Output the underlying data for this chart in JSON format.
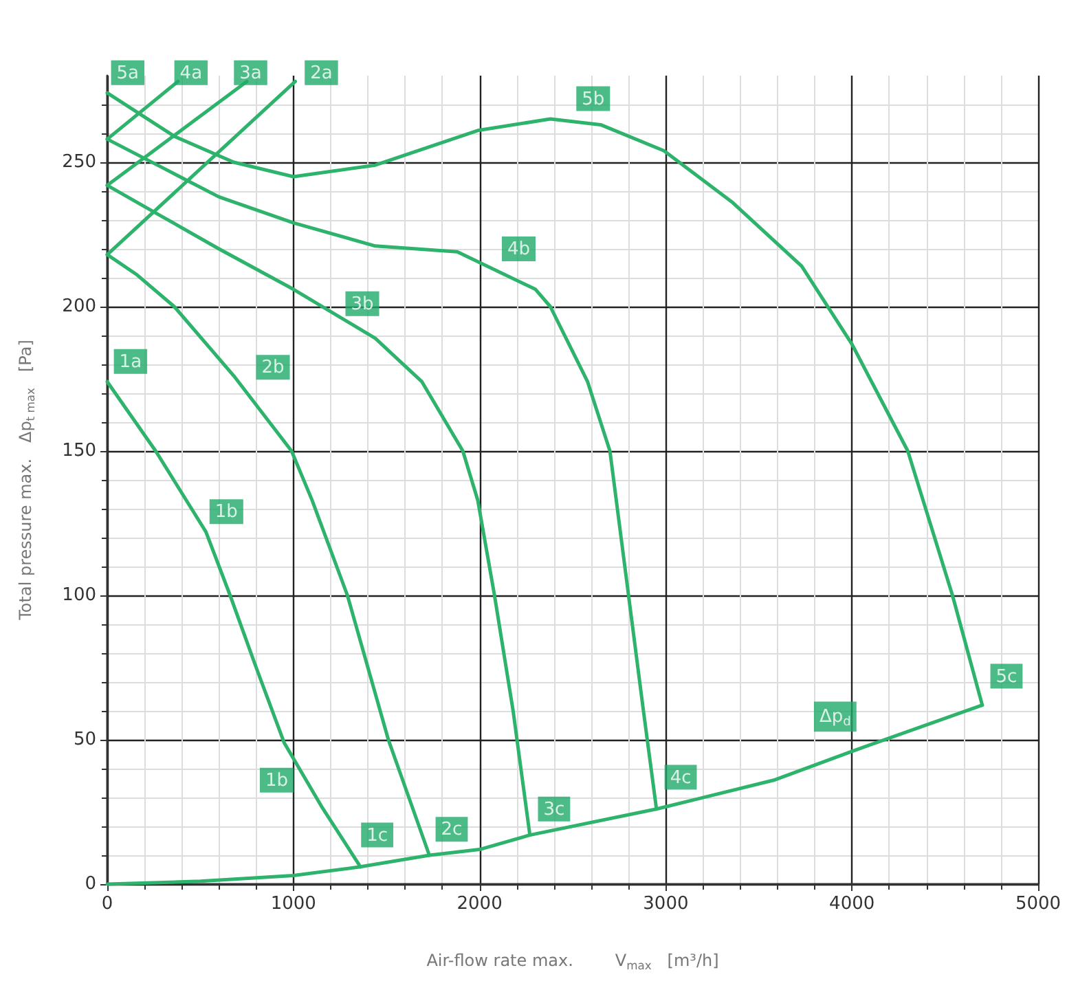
{
  "chart_data": {
    "type": "line",
    "xlabel": "Air-flow rate max.        V$_{max}$   [m³/h]",
    "ylabel": "Total pressure max.   Δp$_{t max}$   [Pa]",
    "xlim": [
      0,
      5000
    ],
    "xticks": [
      0,
      1000,
      2000,
      3000,
      4000,
      5000
    ],
    "ylim": [
      0,
      280
    ],
    "yticks": [
      0,
      50,
      100,
      150,
      200,
      250
    ],
    "grid": true,
    "marker": "none",
    "line_style": "solid",
    "series": [
      {
        "color": "#2db36b",
        "x": [
          0,
          260,
          530,
          660,
          800,
          950,
          1150,
          1360
        ],
        "values": [
          174,
          150,
          122,
          100,
          75,
          49,
          27,
          6
        ]
      },
      {
        "color": "#2db36b",
        "x": [
          0,
          160,
          360,
          680,
          990,
          1100,
          1290,
          1510,
          1730
        ],
        "values": [
          218,
          211,
          200,
          176,
          150,
          133,
          100,
          50,
          10
        ]
      },
      {
        "color": "#2db36b",
        "x": [
          0,
          300,
          600,
          1000,
          1440,
          1690,
          1910,
          1990,
          2080,
          2180,
          2270
        ],
        "values": [
          242,
          231,
          220,
          206,
          189,
          174,
          150,
          133,
          100,
          60,
          17
        ]
      },
      {
        "color": "#2db36b",
        "x": [
          0,
          300,
          600,
          1000,
          1440,
          1880,
          2300,
          2380,
          2580,
          2700,
          2800,
          2880,
          2950
        ],
        "values": [
          258,
          248,
          238,
          229,
          221,
          219,
          206,
          200,
          174,
          150,
          100,
          60,
          26
        ]
      },
      {
        "color": "#2db36b",
        "x": [
          0,
          360,
          680,
          1000,
          1440,
          1990,
          2380,
          2650,
          2990,
          3360,
          3730,
          4000,
          4300,
          4540,
          4700
        ],
        "values": [
          274,
          259,
          250,
          245,
          249,
          261,
          265,
          263,
          254,
          236,
          214,
          187,
          150,
          100,
          62
        ]
      },
      {
        "color": "#2db36b",
        "x": [
          0,
          500,
          1000,
          1360,
          1730,
          2000,
          2270,
          2950,
          3580,
          4000,
          4700
        ],
        "values": [
          0,
          1,
          3,
          6,
          10,
          12,
          17,
          26,
          36,
          46,
          62
        ]
      },
      {
        "color": "#2db36b",
        "x": [
          0,
          1010
        ],
        "values": [
          218,
          278
        ]
      },
      {
        "color": "#2db36b",
        "x": [
          0,
          750
        ],
        "values": [
          242,
          278
        ]
      },
      {
        "color": "#2db36b",
        "x": [
          0,
          380
        ],
        "values": [
          258,
          278
        ]
      }
    ],
    "annotations": [
      {
        "text": "1a",
        "x": 125,
        "y": 181
      },
      {
        "text": "1b",
        "x": 640,
        "y": 129
      },
      {
        "text": "1b",
        "x": 910,
        "y": 36
      },
      {
        "text": "1c",
        "x": 1450,
        "y": 17
      },
      {
        "text": "2b",
        "x": 890,
        "y": 179
      },
      {
        "text": "2c",
        "x": 1850,
        "y": 19
      },
      {
        "text": "3b",
        "x": 1370,
        "y": 201
      },
      {
        "text": "3c",
        "x": 2400,
        "y": 26
      },
      {
        "text": "4b",
        "x": 2210,
        "y": 220
      },
      {
        "text": "4c",
        "x": 3080,
        "y": 37
      },
      {
        "text": "5b",
        "x": 2610,
        "y": 272
      },
      {
        "text": "5c",
        "x": 4830,
        "y": 72
      },
      {
        "text": "Δp$_{d}$",
        "x": 3910,
        "y": 58
      },
      {
        "text": "5a",
        "x": 110,
        "y": 281
      },
      {
        "text": "4a",
        "x": 450,
        "y": 281
      },
      {
        "text": "3a",
        "x": 770,
        "y": 281
      },
      {
        "text": "2a",
        "x": 1150,
        "y": 281
      }
    ]
  }
}
